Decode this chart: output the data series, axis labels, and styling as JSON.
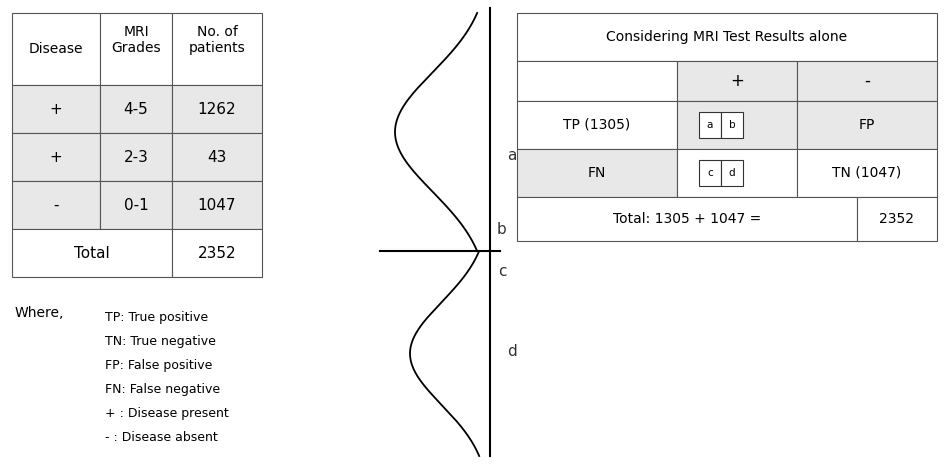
{
  "left_table": {
    "col_headers": [
      "Disease",
      "MRI\nGrades",
      "No. of\npatients"
    ],
    "rows": [
      [
        "+",
        "4-5",
        "1262"
      ],
      [
        "+",
        "2-3",
        "43"
      ],
      [
        "-",
        "0-1",
        "1047"
      ],
      [
        "Total",
        "",
        "2352"
      ]
    ],
    "shade_color": "#e8e8e8"
  },
  "right_table": {
    "title": "Considering MRI Test Results alone",
    "col_headers_row": [
      "+",
      "-"
    ],
    "rows": [
      [
        "TP (1305)",
        "a",
        "b",
        "FP"
      ],
      [
        "FN",
        "c",
        "d",
        "TN (1047)"
      ],
      [
        "Total: 1305 + 1047 =",
        "2352"
      ]
    ],
    "shade_color": "#e8e8e8"
  },
  "legend_items": [
    "TP: True positive",
    "TN: True negative",
    "FP: False positive",
    "FN: False negative",
    "+ : Disease present",
    "- : Disease absent"
  ],
  "where_label": "Where,",
  "bg_color": "#ffffff",
  "text_color": "#000000",
  "curve_color": "#000000",
  "curve_labels": {
    "a": [
      0.475,
      0.63
    ],
    "b": [
      0.475,
      0.485
    ],
    "c": [
      0.475,
      0.455
    ],
    "d": [
      0.475,
      0.31
    ]
  }
}
